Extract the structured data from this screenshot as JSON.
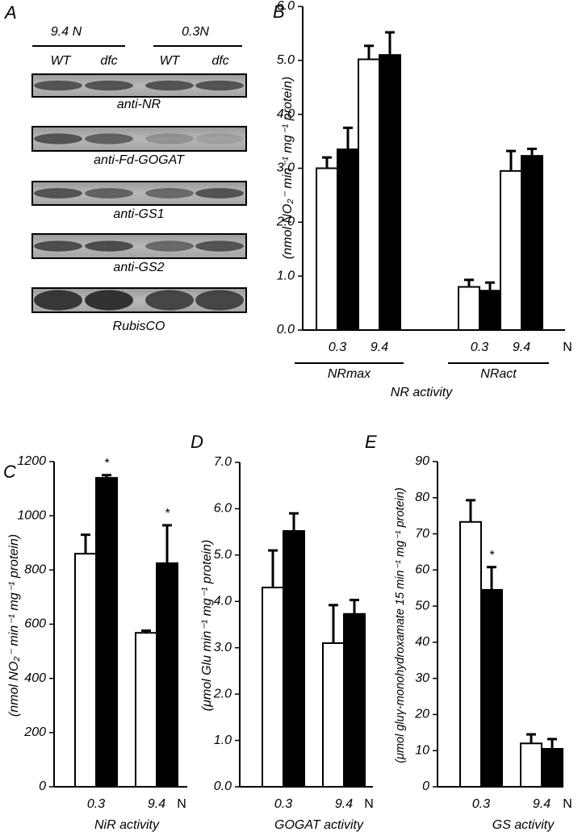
{
  "panel_a": {
    "label": "A",
    "conditions": [
      "9.4 N",
      "0.3N"
    ],
    "genotypes": [
      "WT",
      "dfc",
      "WT",
      "dfc"
    ],
    "blots": [
      "anti-NR",
      "anti-Fd-GOGAT",
      "anti-GS1",
      "anti-GS2",
      "RubisCO"
    ]
  },
  "chart_data": [
    {
      "type": "bar",
      "label": "B",
      "ylabel": "(nmol NO₂⁻ min⁻¹ mg⁻¹ protein)",
      "categories": [
        "0.3",
        "9.4",
        "0.3",
        "9.4"
      ],
      "x_unit": "N",
      "groups": [
        "NRmax",
        "NRact"
      ],
      "xlabel": "NR activity",
      "ylim": [
        0,
        6
      ],
      "yticks": [
        {
          "value": 0,
          "label": "0.0"
        },
        {
          "value": 1,
          "label": "1.0"
        },
        {
          "value": 2,
          "label": "2.0"
        },
        {
          "value": 3,
          "label": "3.0"
        },
        {
          "value": 4,
          "label": "4.0"
        },
        {
          "value": 5,
          "label": "5.0"
        },
        {
          "value": 6,
          "label": "6.0"
        }
      ],
      "series": [
        {
          "color": "#ffffff",
          "values": [
            3.0,
            5.02,
            0.8,
            2.95
          ],
          "errors": [
            0.2,
            0.25,
            0.13,
            0.37
          ]
        },
        {
          "color": "#000000",
          "values": [
            3.35,
            5.1,
            0.73,
            3.23
          ],
          "errors": [
            0.4,
            0.42,
            0.15,
            0.13
          ]
        }
      ]
    },
    {
      "type": "bar",
      "label": "C",
      "ylabel": "(nmol NO₂⁻ min⁻¹ mg⁻¹ protein)",
      "categories": [
        "0.3",
        "9.4"
      ],
      "x_unit": "N",
      "xlabel": "NiR activity",
      "ylim": [
        0,
        1200
      ],
      "yticks": [
        0,
        200,
        400,
        600,
        800,
        1000,
        1200
      ],
      "series": [
        {
          "color": "#ffffff",
          "values": [
            860,
            568
          ],
          "errors": [
            70,
            8
          ]
        },
        {
          "color": "#000000",
          "values": [
            1140,
            825
          ],
          "errors": [
            10,
            140
          ]
        }
      ],
      "annotations": [
        {
          "text": "*",
          "series": 1,
          "index": 0
        },
        {
          "text": "*",
          "series": 1,
          "index": 1
        }
      ]
    },
    {
      "type": "bar",
      "label": "D",
      "ylabel": "(μmol Glu min⁻¹ mg⁻¹ protein)",
      "categories": [
        "0.3",
        "9.4"
      ],
      "x_unit": "N",
      "xlabel": "GOGAT activity",
      "ylim": [
        0,
        7
      ],
      "yticks": [
        {
          "value": 0,
          "label": "0.0"
        },
        {
          "value": 1,
          "label": "1.0"
        },
        {
          "value": 2,
          "label": "2.0"
        },
        {
          "value": 3,
          "label": "3.0"
        },
        {
          "value": 4,
          "label": "4.0"
        },
        {
          "value": 5,
          "label": "5.0"
        },
        {
          "value": 6,
          "label": "6.0"
        },
        {
          "value": 7,
          "label": "7.0"
        }
      ],
      "series": [
        {
          "color": "#ffffff",
          "values": [
            4.3,
            3.1
          ],
          "errors": [
            0.8,
            0.82
          ]
        },
        {
          "color": "#000000",
          "values": [
            5.52,
            3.73
          ],
          "errors": [
            0.38,
            0.3
          ]
        }
      ]
    },
    {
      "type": "bar",
      "label": "E",
      "ylabel": "(μmol gluγ-monohydroxamate 15 min⁻¹ mg⁻¹ protein)",
      "categories": [
        "0.3",
        "9.4"
      ],
      "x_unit": "N",
      "xlabel": "GS activity",
      "ylim": [
        0,
        90
      ],
      "yticks": [
        0,
        10,
        20,
        30,
        40,
        50,
        60,
        70,
        80,
        90
      ],
      "series": [
        {
          "color": "#ffffff",
          "values": [
            73.3,
            12
          ],
          "errors": [
            6,
            2.5
          ]
        },
        {
          "color": "#000000",
          "values": [
            54.5,
            10.5
          ],
          "errors": [
            6.3,
            2.7
          ]
        }
      ],
      "annotations": [
        {
          "text": "*",
          "series": 1,
          "index": 0
        }
      ]
    }
  ]
}
